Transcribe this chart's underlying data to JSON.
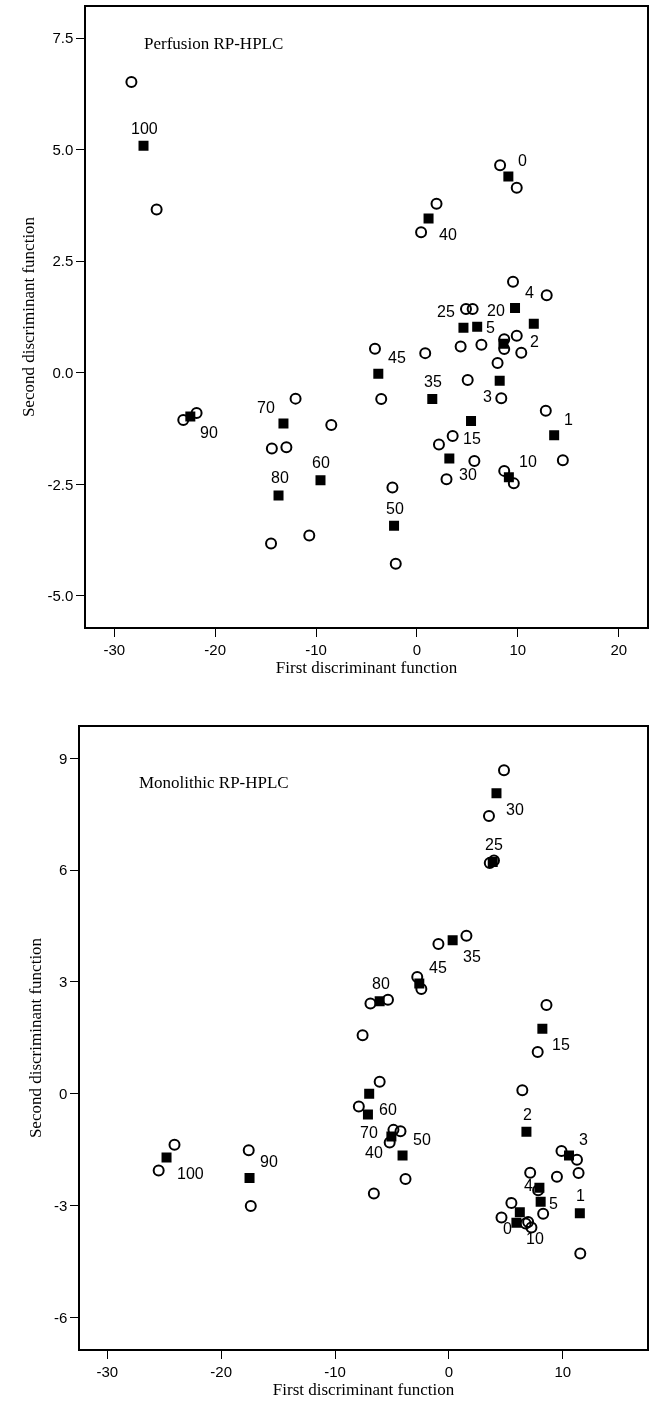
{
  "chart_data": [
    {
      "type": "scatter",
      "title": "Perfusion RP-HPLC",
      "xlabel": "First discriminant function",
      "ylabel": "Second discriminant function",
      "xlim": [
        -32.8,
        22.8
      ],
      "ylim": [
        -5.7,
        8.2
      ],
      "xticks": [
        -30,
        -20,
        -10,
        0,
        10,
        20
      ],
      "yticks": [
        {
          "value": -5,
          "label": "-5.0"
        },
        {
          "value": -2.5,
          "label": "-2.5"
        },
        {
          "value": 0,
          "label": "0.0"
        },
        {
          "value": 2.5,
          "label": "2.5"
        },
        {
          "value": 5,
          "label": "5.0"
        },
        {
          "value": 7.5,
          "label": "7.5"
        }
      ],
      "series": [
        {
          "color": "#000000",
          "marker": "circle",
          "x": [
            -28.3,
            -25.8,
            8.24,
            9.89,
            1.94,
            0.41,
            9.52,
            12.86,
            4.86,
            5.52,
            8.65,
            9.89,
            8.65,
            10.34,
            -4.16,
            0.82,
            4.33,
            6.39,
            7.99,
            5.03,
            -12.03,
            -3.54,
            8.36,
            12.77,
            -21.84,
            -23.16,
            -8.49,
            3.54,
            2.18,
            -14.38,
            -12.94,
            5.69,
            14.46,
            8.65,
            9.6,
            2.93,
            -2.43,
            -10.67,
            -14.46,
            -2.1
          ],
          "values": [
            6.52,
            3.66,
            4.65,
            4.15,
            3.79,
            3.15,
            2.04,
            1.74,
            1.43,
            1.43,
            0.75,
            0.83,
            0.53,
            0.45,
            0.54,
            0.44,
            0.59,
            0.63,
            0.22,
            -0.16,
            -0.58,
            -0.59,
            -0.57,
            -0.85,
            -0.9,
            -1.06,
            -1.17,
            -1.42,
            -1.61,
            -1.7,
            -1.67,
            -1.98,
            -1.96,
            -2.2,
            -2.48,
            -2.39,
            -2.57,
            -3.65,
            -3.83,
            -4.28
          ]
        },
        {
          "color": "#000000",
          "marker": "square",
          "x": [
            -27.1,
            9.06,
            1.15,
            9.72,
            11.58,
            4.61,
            5.97,
            8.57,
            -3.83,
            8.2,
            1.52,
            -22.46,
            -13.23,
            5.36,
            13.6,
            3.21,
            9.11,
            -9.56,
            -13.72,
            -2.27
          ],
          "values": [
            5.09,
            4.4,
            3.46,
            1.45,
            1.1,
            1.01,
            1.03,
            0.65,
            -0.02,
            -0.18,
            -0.59,
            -0.98,
            -1.14,
            -1.08,
            -1.4,
            -1.92,
            -2.34,
            -2.41,
            -2.75,
            -3.43
          ]
        }
      ],
      "annotations": [
        {
          "text": "100",
          "x": -27.1,
          "y": 5.09
        },
        {
          "text": "0",
          "x": 9.06,
          "y": 4.4
        },
        {
          "text": "40",
          "x": 1.15,
          "y": 3.46
        },
        {
          "text": "4",
          "x": 9.72,
          "y": 1.45
        },
        {
          "text": "2",
          "x": 11.58,
          "y": 1.1
        },
        {
          "text": "25",
          "x": 4.61,
          "y": 1.01
        },
        {
          "text": "20",
          "x": 5.97,
          "y": 1.03
        },
        {
          "text": "5",
          "x": 8.57,
          "y": 0.65
        },
        {
          "text": "45",
          "x": -3.83,
          "y": -0.02
        },
        {
          "text": "3",
          "x": 8.2,
          "y": -0.18
        },
        {
          "text": "35",
          "x": 1.52,
          "y": -0.59
        },
        {
          "text": "90",
          "x": -22.46,
          "y": -0.98
        },
        {
          "text": "70",
          "x": -13.23,
          "y": -1.14
        },
        {
          "text": "15",
          "x": 5.36,
          "y": -1.08
        },
        {
          "text": "1",
          "x": 13.6,
          "y": -1.4
        },
        {
          "text": "30",
          "x": 3.21,
          "y": -1.92
        },
        {
          "text": "10",
          "x": 9.11,
          "y": -2.34
        },
        {
          "text": "60",
          "x": -9.56,
          "y": -2.41
        },
        {
          "text": "80",
          "x": -13.72,
          "y": -2.75
        },
        {
          "text": "50",
          "x": -2.27,
          "y": -3.43
        }
      ]
    },
    {
      "type": "scatter",
      "title": "Monolithic RP-HPLC",
      "xlabel": "First discriminant function",
      "ylabel": "Second discriminant function",
      "xlim": [
        -32.4,
        17.4
      ],
      "ylim": [
        -6.85,
        9.84
      ],
      "xticks": [
        -30,
        -20,
        -10,
        0,
        10
      ],
      "yticks": [
        -6,
        -3,
        0,
        3,
        6,
        9
      ],
      "series": [
        {
          "color": "#000000",
          "marker": "circle",
          "x": [
            4.84,
            3.52,
            3.59,
            3.96,
            1.54,
            -0.92,
            -2.78,
            -2.42,
            -6.89,
            -5.35,
            -7.58,
            8.57,
            7.8,
            6.45,
            -6.08,
            -7.91,
            -4.87,
            -4.25,
            -5.2,
            -3.81,
            -6.59,
            -24.1,
            -25.49,
            -17.58,
            -17.4,
            9.89,
            11.25,
            11.39,
            7.14,
            9.49,
            7.84,
            8.28,
            5.49,
            4.62,
            6.96,
            6.74,
            7.25,
            11.54
          ],
          "values": [
            8.68,
            7.45,
            6.19,
            6.26,
            4.24,
            4.02,
            3.13,
            2.81,
            2.42,
            2.52,
            1.57,
            2.38,
            1.12,
            0.09,
            0.32,
            -0.34,
            -0.97,
            -1.01,
            -1.31,
            -2.29,
            -2.68,
            -1.37,
            -2.06,
            -1.52,
            -3.01,
            -1.54,
            -1.77,
            -2.13,
            -2.12,
            -2.23,
            -2.59,
            -3.22,
            -2.93,
            -3.32,
            -3.44,
            -3.48,
            -3.59,
            -4.29
          ]
        },
        {
          "color": "#000000",
          "marker": "square",
          "x": [
            4.18,
            3.85,
            0.33,
            -2.6,
            -6.08,
            8.21,
            -7.0,
            -7.11,
            -5.05,
            -4.07,
            -24.8,
            -17.51,
            6.81,
            10.55,
            7.95,
            8.06,
            6.23,
            5.93,
            11.5
          ],
          "values": [
            8.06,
            6.22,
            4.12,
            2.96,
            2.48,
            1.74,
            0.0,
            -0.56,
            -1.15,
            -1.66,
            -1.71,
            -2.26,
            -1.02,
            -1.66,
            -2.52,
            -2.9,
            -3.18,
            -3.46,
            -3.21
          ]
        }
      ],
      "annotations": [
        {
          "text": "30",
          "x": 4.18,
          "y": 8.06
        },
        {
          "text": "25",
          "x": 3.85,
          "y": 6.22
        },
        {
          "text": "35",
          "x": 0.33,
          "y": 4.12
        },
        {
          "text": "45",
          "x": -2.6,
          "y": 2.96
        },
        {
          "text": "80",
          "x": -6.08,
          "y": 2.48
        },
        {
          "text": "15",
          "x": 8.21,
          "y": 1.74
        },
        {
          "text": "60",
          "x": -7.0,
          "y": 0.0
        },
        {
          "text": "70",
          "x": -7.11,
          "y": -0.56
        },
        {
          "text": "40",
          "x": -5.05,
          "y": -1.15
        },
        {
          "text": "50",
          "x": -4.07,
          "y": -1.66
        },
        {
          "text": "100",
          "x": -24.8,
          "y": -1.71
        },
        {
          "text": "90",
          "x": -17.51,
          "y": -2.26
        },
        {
          "text": "2",
          "x": 6.81,
          "y": -1.02
        },
        {
          "text": "3",
          "x": 10.55,
          "y": -1.66
        },
        {
          "text": "5",
          "x": 7.95,
          "y": -2.52
        },
        {
          "text": "4",
          "x": 8.06,
          "y": -2.9
        },
        {
          "text": "0",
          "x": 6.23,
          "y": -3.18
        },
        {
          "text": "10",
          "x": 5.93,
          "y": -3.46
        },
        {
          "text": "1",
          "x": 11.5,
          "y": -3.21
        }
      ]
    }
  ]
}
